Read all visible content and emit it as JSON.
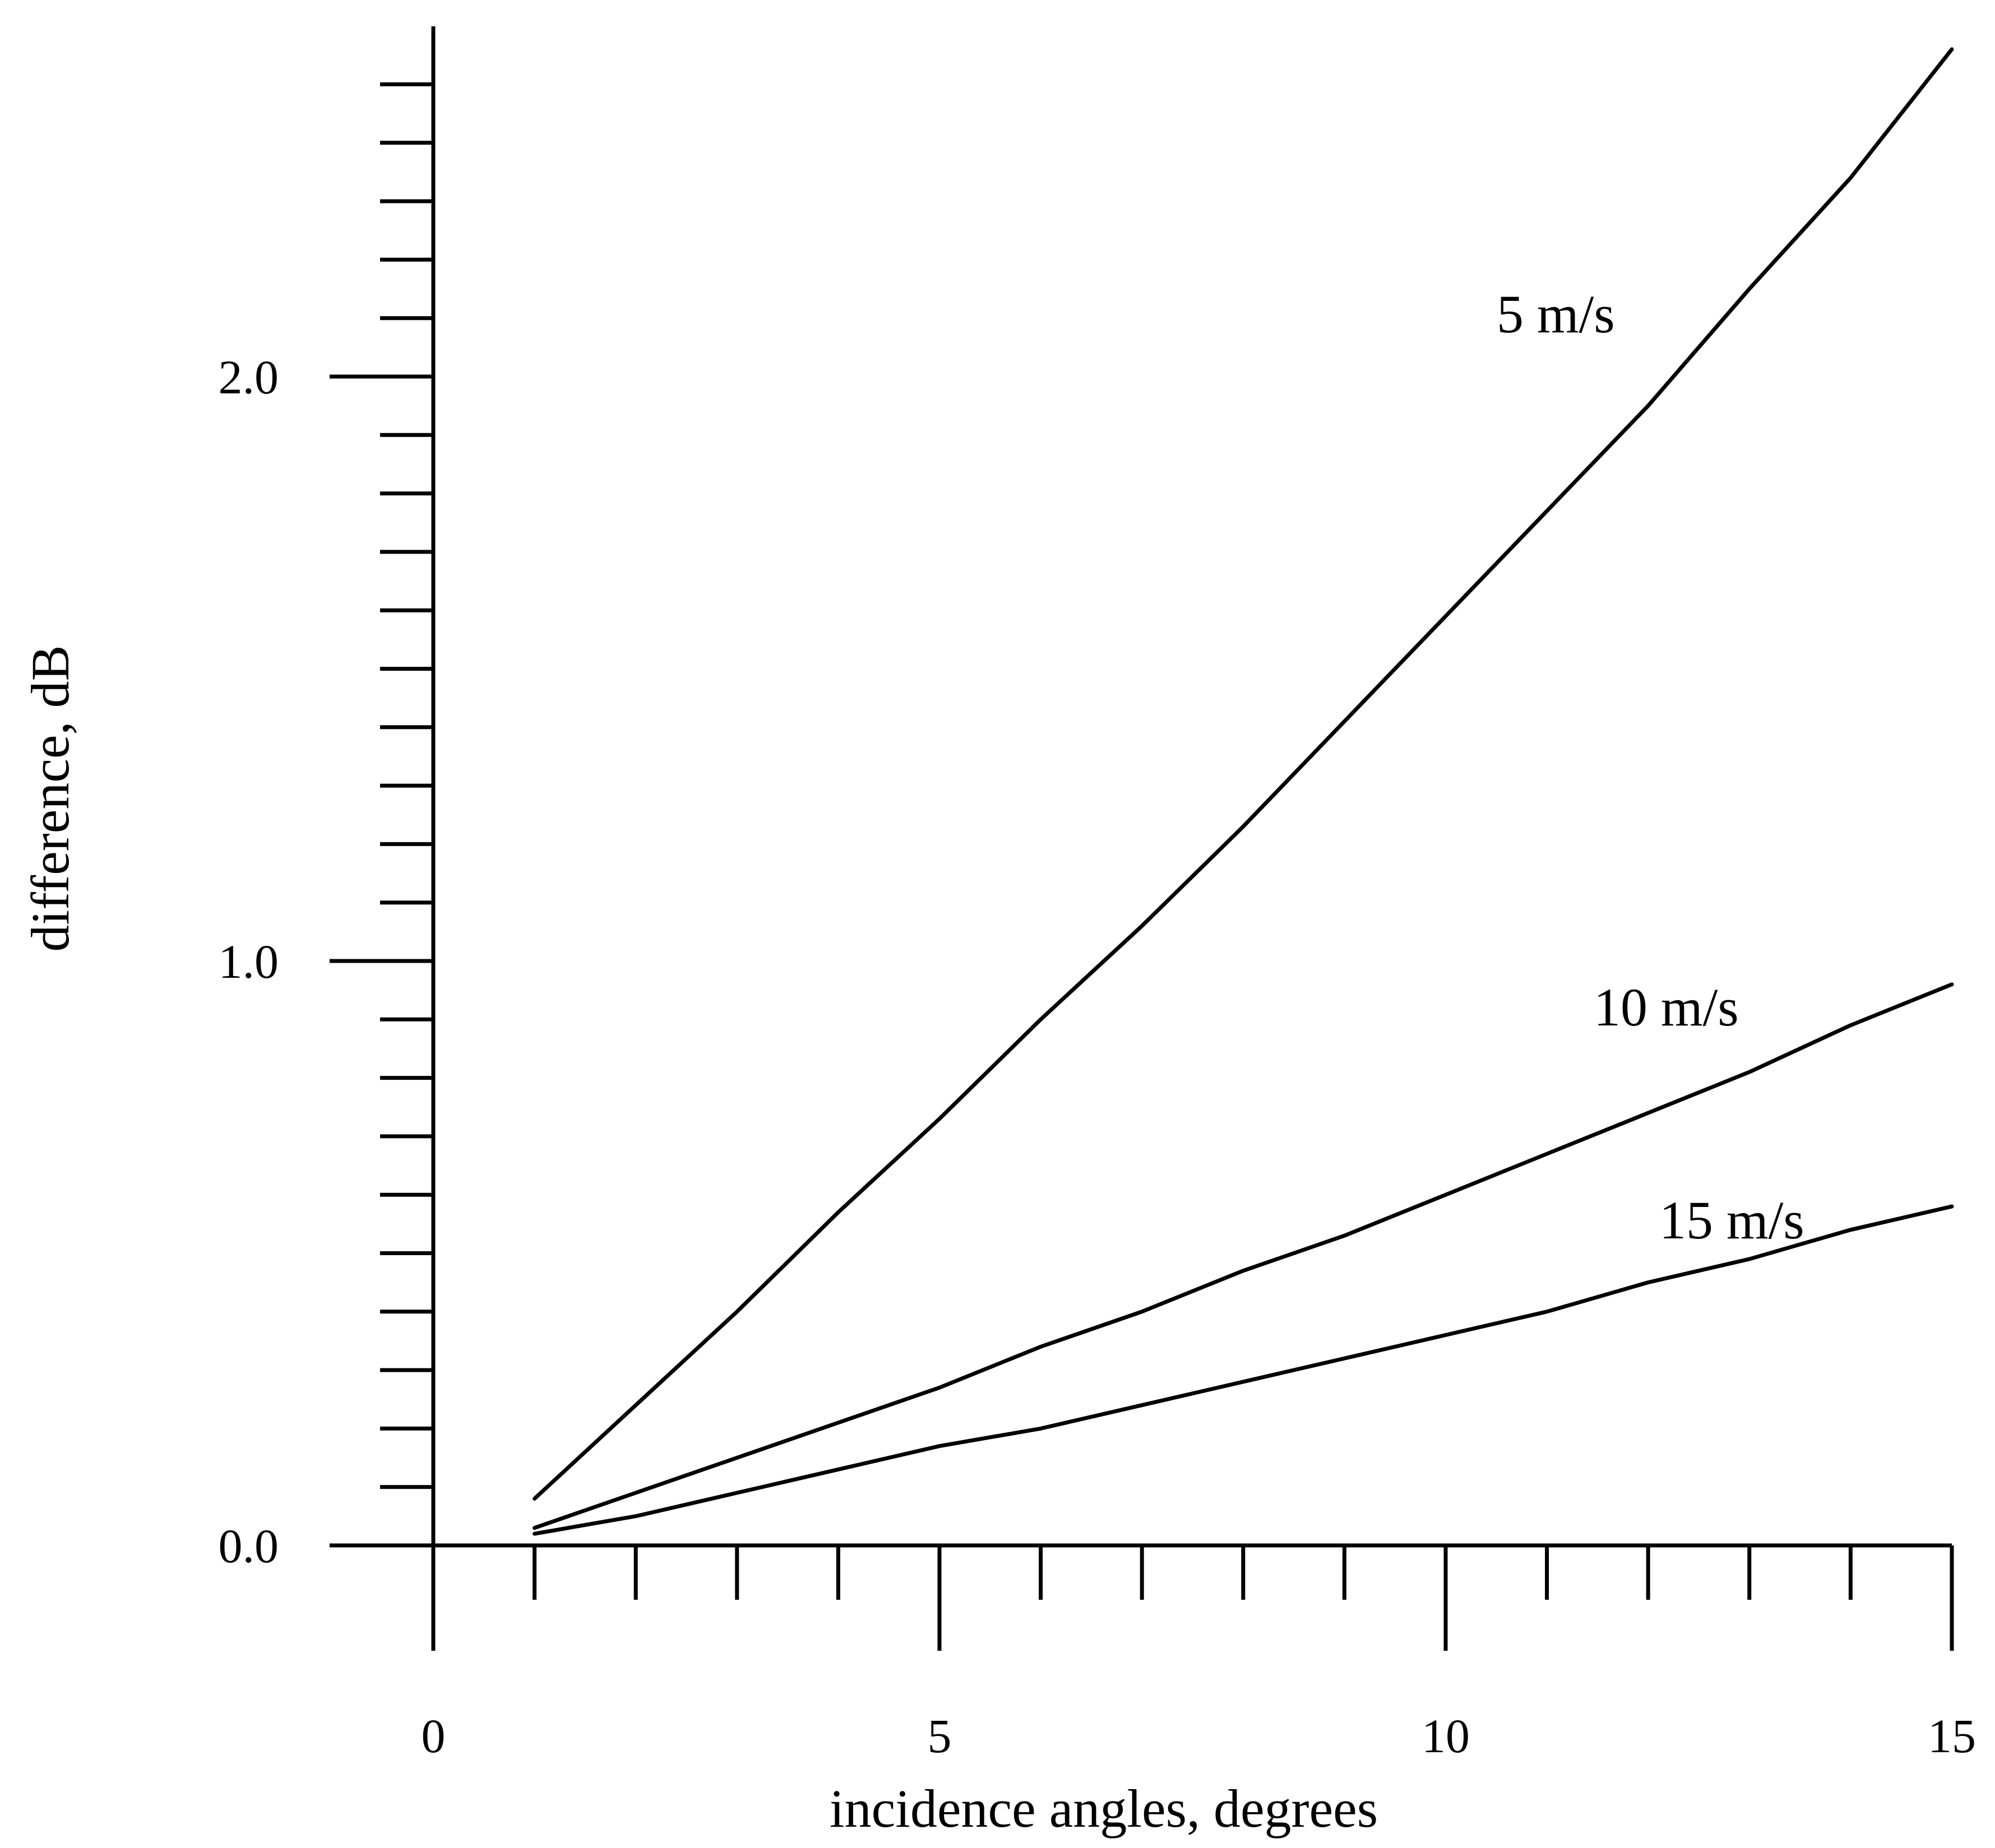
{
  "chart_data": {
    "type": "line",
    "xlabel": "incidence angles, degrees",
    "ylabel": "difference, dB",
    "xlim": [
      0,
      15
    ],
    "ylim": [
      0.0,
      2.6
    ],
    "x_ticks": [
      "0",
      "5",
      "10",
      "15"
    ],
    "y_ticks": [
      "0.0",
      "1.0",
      "2.0"
    ],
    "x": [
      1,
      2,
      3,
      4,
      5,
      6,
      7,
      8,
      9,
      10,
      11,
      12,
      13,
      14,
      15
    ],
    "series": [
      {
        "name": "5 m/s",
        "values": [
          0.08,
          0.24,
          0.4,
          0.57,
          0.73,
          0.9,
          1.06,
          1.23,
          1.41,
          1.59,
          1.77,
          1.95,
          2.15,
          2.34,
          2.56
        ]
      },
      {
        "name": "10 m/s",
        "values": [
          0.03,
          0.09,
          0.15,
          0.21,
          0.27,
          0.34,
          0.4,
          0.47,
          0.53,
          0.6,
          0.67,
          0.74,
          0.81,
          0.89,
          0.96
        ]
      },
      {
        "name": "15 m/s",
        "values": [
          0.02,
          0.05,
          0.09,
          0.13,
          0.17,
          0.2,
          0.24,
          0.28,
          0.32,
          0.36,
          0.4,
          0.45,
          0.49,
          0.54,
          0.58
        ]
      }
    ],
    "grid": false,
    "legend": "labels on lines"
  }
}
